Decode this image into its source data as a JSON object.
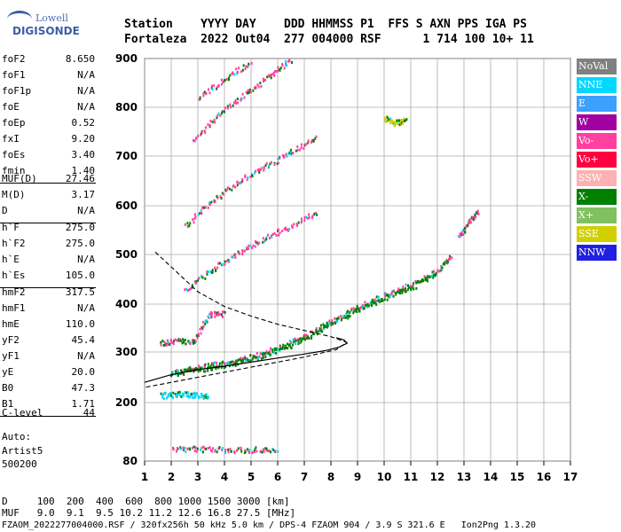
{
  "logo": {
    "line1": "Lowell",
    "line2": "DIGISONDE"
  },
  "header": {
    "row1": "Station    YYYY DAY    DDD HHMMSS P1  FFS S AXN PPS IGA PS",
    "row2": "Fortaleza  2022 Out04  277 004000 RSF      1 714 100 10+ 11"
  },
  "params": [
    {
      "group": [
        {
          "n": "foF2",
          "v": "8.650"
        },
        {
          "n": "foF1",
          "v": "N/A"
        },
        {
          "n": "foF1p",
          "v": "N/A"
        },
        {
          "n": "foE",
          "v": "N/A"
        },
        {
          "n": "foEp",
          "v": "0.52"
        },
        {
          "n": "fxI",
          "v": "9.20"
        },
        {
          "n": "foEs",
          "v": "3.40"
        },
        {
          "n": "fmin",
          "v": "1.40"
        }
      ]
    },
    {
      "group": [
        {
          "n": "MUF(D)",
          "v": "27.46"
        },
        {
          "n": "M(D)",
          "v": "3.17"
        },
        {
          "n": "D",
          "v": "N/A"
        }
      ]
    },
    {
      "group": [
        {
          "n": "h`F",
          "v": "275.0"
        },
        {
          "n": "h`F2",
          "v": "275.0"
        },
        {
          "n": "h`E",
          "v": "N/A"
        },
        {
          "n": "h`Es",
          "v": "105.0"
        }
      ]
    },
    {
      "group": [
        {
          "n": "hmF2",
          "v": "317.5"
        },
        {
          "n": "hmF1",
          "v": "N/A"
        },
        {
          "n": "hmE",
          "v": "110.0"
        },
        {
          "n": "yF2",
          "v": "45.4"
        },
        {
          "n": "yF1",
          "v": "N/A"
        },
        {
          "n": "yE",
          "v": "20.0"
        },
        {
          "n": "B0",
          "v": "47.3"
        },
        {
          "n": "B1",
          "v": "1.71"
        }
      ]
    },
    {
      "group": [
        {
          "n": "C-level",
          "v": "44"
        }
      ]
    }
  ],
  "autoscale": {
    "line1": "Auto:",
    "line2": "Artist5",
    "line3": "500200"
  },
  "legend": [
    {
      "label": "NoVal",
      "color": "#808080"
    },
    {
      "label": "NNE",
      "color": "#00d8ff"
    },
    {
      "label": "E",
      "color": "#3ca0ff"
    },
    {
      "label": "W",
      "color": "#a000a0"
    },
    {
      "label": "Vo-",
      "color": "#ff40a0"
    },
    {
      "label": "Vo+",
      "color": "#ff0040"
    },
    {
      "label": "SSW",
      "color": "#ffb0b0"
    },
    {
      "label": "X-",
      "color": "#008000"
    },
    {
      "label": "X+",
      "color": "#80c060"
    },
    {
      "label": "SSE",
      "color": "#d0d000"
    },
    {
      "label": "NNW",
      "color": "#2020e0"
    }
  ],
  "footer": {
    "line1": "D     100  200  400  600  800 1000 1500 3000 [km]",
    "line2": "MUF   9.0  9.1  9.5 10.2 11.2 12.6 16.8 27.5 [MHz]",
    "line3": "FZAOM_2022277004000.RSF / 320fx256h 50 kHz 5.0 km / DPS-4 FZAOM 904 / 3.9 S 321.6 E   Ion2Png 1.3.20"
  },
  "chart_data": {
    "type": "scatter",
    "x_ticks": [
      1,
      2,
      3,
      4,
      5,
      6,
      7,
      8,
      9,
      10,
      11,
      12,
      13,
      14,
      15,
      16,
      17
    ],
    "y_ticks": [
      80,
      200,
      300,
      400,
      500,
      600,
      700,
      800,
      900
    ],
    "xlim": [
      1,
      17
    ],
    "ylim": [
      80,
      900
    ],
    "grid": true,
    "echo_traces": [
      {
        "name": "F2 o-trace",
        "color": "#ff40a0",
        "points": [
          [
            2.0,
            262
          ],
          [
            3.0,
            270
          ],
          [
            4.0,
            280
          ],
          [
            5.0,
            292
          ],
          [
            6.0,
            310
          ],
          [
            7.0,
            335
          ],
          [
            8.0,
            365
          ],
          [
            9.0,
            395
          ],
          [
            10.0,
            420
          ],
          [
            11.0,
            440
          ],
          [
            12.0,
            470
          ],
          [
            12.5,
            500
          ]
        ]
      },
      {
        "name": "F2 x-trace",
        "color": "#008000",
        "points": [
          [
            2.0,
            258
          ],
          [
            3.0,
            266
          ],
          [
            4.0,
            276
          ],
          [
            5.0,
            288
          ],
          [
            6.0,
            305
          ],
          [
            7.0,
            330
          ],
          [
            8.0,
            360
          ],
          [
            9.0,
            390
          ],
          [
            10.0,
            415
          ],
          [
            11.0,
            435
          ],
          [
            12.0,
            465
          ]
        ]
      },
      {
        "name": "F2 2nd hop",
        "color": "#ff40a0",
        "points": [
          [
            2.5,
            430
          ],
          [
            3.5,
            470
          ],
          [
            4.5,
            505
          ],
          [
            5.5,
            535
          ],
          [
            6.5,
            560
          ],
          [
            7.5,
            590
          ]
        ]
      },
      {
        "name": "F2 3rd hop",
        "color": "#ff40a0",
        "points": [
          [
            2.5,
            560
          ],
          [
            3.5,
            610
          ],
          [
            4.5,
            650
          ],
          [
            5.5,
            680
          ],
          [
            6.5,
            710
          ],
          [
            7.5,
            740
          ]
        ]
      },
      {
        "name": "F2 4th hop",
        "color": "#ff40a0",
        "points": [
          [
            2.8,
            730
          ],
          [
            3.8,
            790
          ],
          [
            4.8,
            830
          ],
          [
            5.8,
            870
          ],
          [
            6.5,
            900
          ]
        ]
      },
      {
        "name": "F2 5th hop",
        "color": "#ff40a0",
        "points": [
          [
            3.0,
            820
          ],
          [
            4.0,
            860
          ],
          [
            5.0,
            895
          ]
        ]
      },
      {
        "name": "Es",
        "color": "#ff40a0",
        "points": [
          [
            2.0,
            105
          ],
          [
            3.0,
            107
          ],
          [
            4.0,
            105
          ],
          [
            5.0,
            105
          ],
          [
            6.0,
            106
          ]
        ]
      },
      {
        "name": "Es 2nd",
        "color": "#00d8ff",
        "points": [
          [
            1.6,
            215
          ],
          [
            2.2,
            218
          ],
          [
            2.8,
            218
          ],
          [
            3.4,
            215
          ]
        ]
      },
      {
        "name": "Es spread",
        "color": "#ff40a0",
        "points": [
          [
            1.6,
            320
          ],
          [
            2.2,
            325
          ],
          [
            2.8,
            322
          ],
          [
            3.4,
            380
          ],
          [
            4.0,
            382
          ]
        ]
      },
      {
        "name": "oblique",
        "color": "#d0d000",
        "points": [
          [
            10.0,
            780
          ],
          [
            10.4,
            770
          ],
          [
            10.8,
            775
          ]
        ]
      },
      {
        "name": "high",
        "color": "#ff40a0",
        "points": [
          [
            12.8,
            540
          ],
          [
            13.2,
            570
          ],
          [
            13.5,
            590
          ]
        ]
      }
    ],
    "profile_solid": [
      [
        1.0,
        240
      ],
      [
        2.0,
        255
      ],
      [
        3.0,
        265
      ],
      [
        4.0,
        272
      ],
      [
        5.0,
        280
      ],
      [
        6.0,
        288
      ],
      [
        7.0,
        296
      ],
      [
        7.8,
        303
      ],
      [
        8.3,
        310
      ],
      [
        8.6,
        318
      ],
      [
        8.5,
        325
      ],
      [
        8.2,
        330
      ]
    ],
    "profile_dashed": [
      [
        1.4,
        505
      ],
      [
        2.0,
        475
      ],
      [
        3.0,
        425
      ],
      [
        4.0,
        395
      ],
      [
        5.0,
        375
      ],
      [
        6.0,
        358
      ],
      [
        7.0,
        345
      ],
      [
        8.0,
        332
      ],
      [
        8.6,
        320
      ],
      [
        8.2,
        305
      ],
      [
        7.0,
        290
      ],
      [
        5.0,
        270
      ],
      [
        3.0,
        250
      ],
      [
        1.5,
        235
      ],
      [
        1.0,
        230
      ]
    ]
  }
}
